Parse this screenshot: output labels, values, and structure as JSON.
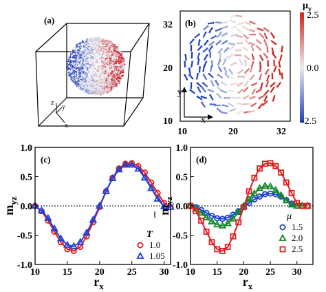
{
  "chart_data": [
    {
      "panel": "(a)",
      "type": "other",
      "axis_labels": [
        "z",
        "y",
        "x"
      ]
    },
    {
      "panel": "(b)",
      "type": "scatter",
      "xlabel": "x",
      "ylabel": "y",
      "xticks": [
        "10",
        "20",
        "32"
      ],
      "yticks": [
        "10",
        "20",
        "32"
      ],
      "xlim": [
        10,
        32
      ],
      "ylim": [
        10,
        32
      ],
      "colorbar": {
        "label": "μy",
        "ticks": [
          "2.5",
          "0.0",
          "-2.5"
        ],
        "range": [
          -2.5,
          2.5
        ]
      },
      "colors": {
        "negative": "#1f3fbf",
        "zero": "#ececec",
        "positive": "#d42020"
      }
    },
    {
      "panel": "(c)",
      "type": "line",
      "xlabel": "r",
      "xlabel_sub": "x",
      "ylabel": "m",
      "ylabel_sub": "yz",
      "xlim": [
        10,
        31
      ],
      "ylim": [
        -1.0,
        1.0
      ],
      "xticks": [
        "10",
        "15",
        "20",
        "25",
        "30"
      ],
      "yticks": [
        "-1.0",
        "-0.5",
        "0.0",
        "0.5",
        "1.0"
      ],
      "legend_title": "T",
      "legend_position": "bottom-right",
      "x": [
        10,
        11,
        12,
        13,
        14,
        15,
        16,
        17,
        18,
        19,
        20,
        21,
        22,
        23,
        24,
        25,
        26,
        27,
        28,
        29,
        30,
        31
      ],
      "series": [
        {
          "name": "1.0",
          "marker": "circle",
          "color": "#e31a1c",
          "values": [
            0.0,
            -0.09,
            -0.25,
            -0.44,
            -0.62,
            -0.74,
            -0.77,
            -0.7,
            -0.52,
            -0.28,
            -0.02,
            0.25,
            0.48,
            0.64,
            0.72,
            0.73,
            0.68,
            0.57,
            0.4,
            0.22,
            0.05,
            -0.02
          ]
        },
        {
          "name": "1.05",
          "marker": "triangle",
          "color": "#1c3fd6",
          "values": [
            0.0,
            -0.08,
            -0.21,
            -0.39,
            -0.56,
            -0.67,
            -0.69,
            -0.62,
            -0.46,
            -0.24,
            0.0,
            0.25,
            0.47,
            0.62,
            0.7,
            0.7,
            0.63,
            0.48,
            0.3,
            0.12,
            -0.01,
            -0.02
          ]
        }
      ]
    },
    {
      "panel": "(d)",
      "type": "line",
      "xlabel": "r",
      "xlabel_sub": "x",
      "ylabel": "m",
      "ylabel_sub": "yz",
      "xlim": [
        10,
        33
      ],
      "ylim": [
        -1.0,
        1.0
      ],
      "xticks": [
        "10",
        "15",
        "20",
        "25",
        "30"
      ],
      "yticks": [
        "-1.0",
        "-0.5",
        "0.0",
        "0.5",
        "1.0"
      ],
      "legend_title": "μ",
      "legend_position": "bottom-right",
      "x": [
        10,
        11,
        12,
        13,
        14,
        15,
        16,
        17,
        18,
        19,
        20,
        21,
        22,
        23,
        24,
        25,
        26,
        27,
        28,
        29,
        30,
        31,
        32
      ],
      "series": [
        {
          "name": "1.5",
          "marker": "circle",
          "color": "#1c3fd6",
          "values": [
            0.0,
            -0.02,
            -0.07,
            -0.12,
            -0.17,
            -0.21,
            -0.22,
            -0.2,
            -0.15,
            -0.09,
            -0.02,
            0.05,
            0.11,
            0.16,
            0.2,
            0.21,
            0.2,
            0.16,
            0.1,
            0.04,
            0.0,
            0.0,
            0.0
          ]
        },
        {
          "name": "2.0",
          "marker": "triangle",
          "color": "#138a2a",
          "values": [
            0.0,
            -0.05,
            -0.12,
            -0.2,
            -0.27,
            -0.32,
            -0.34,
            -0.3,
            -0.22,
            -0.11,
            0.0,
            0.11,
            0.21,
            0.3,
            0.34,
            0.33,
            0.27,
            0.18,
            0.09,
            0.02,
            0.0,
            0.0,
            0.0
          ]
        },
        {
          "name": "2.5",
          "marker": "square",
          "color": "#e31a1c",
          "values": [
            0.0,
            -0.09,
            -0.25,
            -0.44,
            -0.62,
            -0.74,
            -0.77,
            -0.7,
            -0.52,
            -0.28,
            -0.02,
            0.25,
            0.48,
            0.64,
            0.72,
            0.73,
            0.68,
            0.57,
            0.4,
            0.22,
            0.05,
            0.0,
            0.0
          ]
        }
      ]
    }
  ]
}
